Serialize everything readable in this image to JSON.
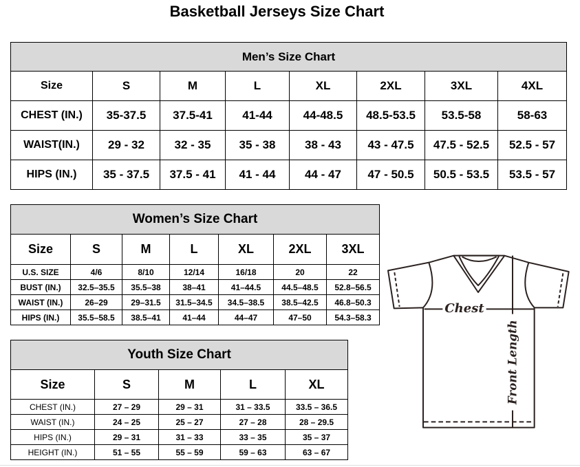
{
  "title": "Basketball Jerseys Size Chart",
  "men": {
    "title": "Men’s Size Chart",
    "header": [
      "Size",
      "S",
      "M",
      "L",
      "XL",
      "2XL",
      "3XL",
      "4XL"
    ],
    "rows": [
      [
        "CHEST (IN.)",
        "35-37.5",
        "37.5-41",
        "41-44",
        "44-48.5",
        "48.5-53.5",
        "53.5-58",
        "58-63"
      ],
      [
        "WAIST(IN.)",
        "29 - 32",
        "32 - 35",
        "35 - 38",
        "38 - 43",
        "43 - 47.5",
        "47.5 - 52.5",
        "52.5 - 57"
      ],
      [
        "HIPS (IN.)",
        "35 - 37.5",
        "37.5 - 41",
        "41 - 44",
        "44 - 47",
        "47 - 50.5",
        "50.5 - 53.5",
        "53.5 - 57"
      ]
    ]
  },
  "women": {
    "title": "Women’s Size Chart",
    "header": [
      "Size",
      "S",
      "M",
      "L",
      "XL",
      "2XL",
      "3XL"
    ],
    "rows": [
      [
        "U.S.  SIZE",
        "4/6",
        "8/10",
        "12/14",
        "16/18",
        "20",
        "22"
      ],
      [
        "BUST  (IN.)",
        "32.5–35.5",
        "35.5–38",
        "38–41",
        "41–44.5",
        "44.5–48.5",
        "52.8–56.5"
      ],
      [
        "WAIST  (IN.)",
        "26–29",
        "29–31.5",
        "31.5–34.5",
        "34.5–38.5",
        "38.5–42.5",
        "46.8–50.3"
      ],
      [
        "HIPS  (IN.)",
        "35.5–58.5",
        "38.5–41",
        "41–44",
        "44–47",
        "47–50",
        "54.3–58.3"
      ]
    ]
  },
  "youth": {
    "title": "Youth Size Chart",
    "header": [
      "Size",
      "S",
      "M",
      "L",
      "XL"
    ],
    "rows": [
      [
        "CHEST  (IN.)",
        "27  –  29",
        "29  –  31",
        "31  –  33.5",
        "33.5  –  36.5"
      ],
      [
        "WAIST  (IN.)",
        "24  –  25",
        "25  –  27",
        "27  –  28",
        "28  –  29.5"
      ],
      [
        "HIPS  (IN.)",
        "29  –  31",
        "31  –  33",
        "33  –  35",
        "35  –  37"
      ],
      [
        "HEIGHT  (IN.)",
        "51  –  55",
        "55  –  59",
        "59  –  63",
        "63  –  67"
      ]
    ]
  },
  "diagram": {
    "chest_label": "Chest",
    "length_label": "Front Length",
    "line_color": "#2b2220"
  }
}
